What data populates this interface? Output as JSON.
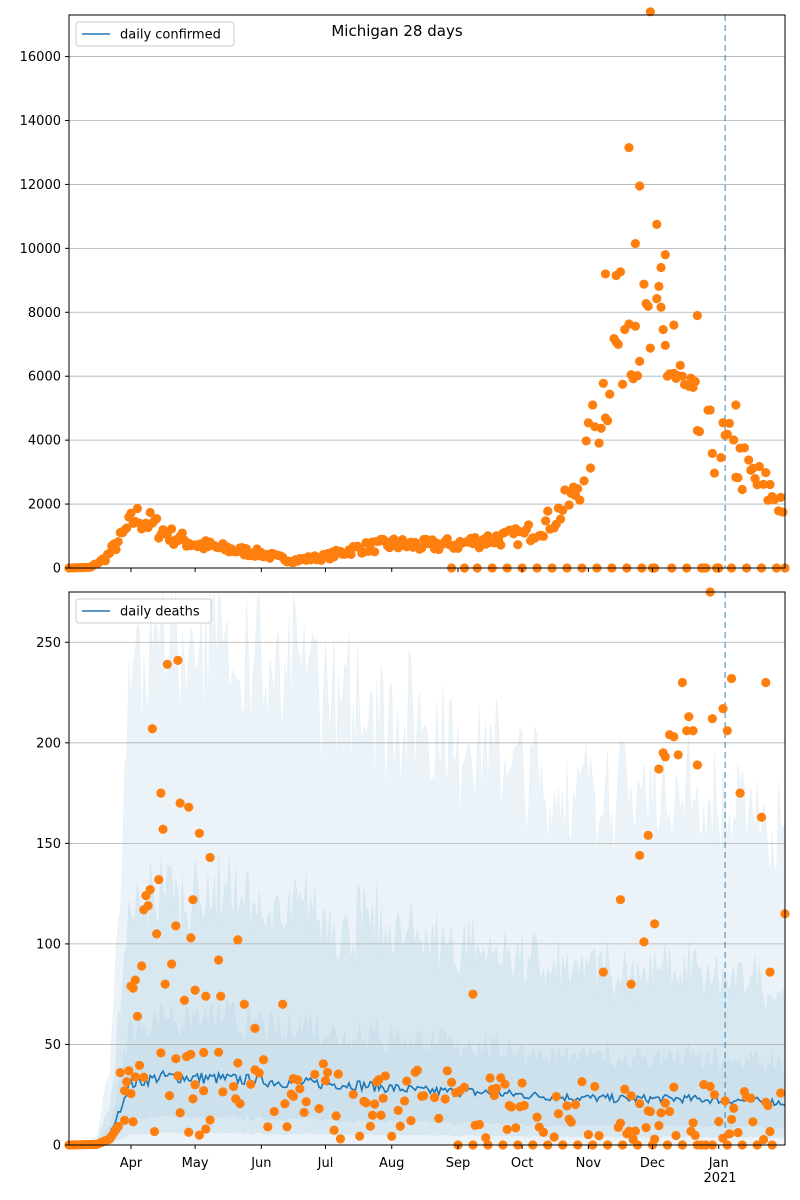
{
  "title": "Michigan 28 days",
  "x_ticks": [
    "Apr",
    "May",
    "Jun",
    "Jul",
    "Aug",
    "Sep",
    "Oct",
    "Nov",
    "Dec",
    "Jan"
  ],
  "x_year_label": "2021",
  "colors": {
    "line": "#1f77b4",
    "points": "#ff7f0e",
    "band": "#1f77b4",
    "grid": "#b0b0b0",
    "vline": "#1f77b4"
  },
  "chart_data": [
    {
      "type": "scatter",
      "title": "Michigan 28 days",
      "legend": {
        "label": "daily confirmed",
        "placement": "top-left"
      },
      "xlim": [
        "2020-03-03",
        "2021-02-01"
      ],
      "ylim": [
        0,
        17300
      ],
      "yticks": [
        0,
        2000,
        4000,
        6000,
        8000,
        10000,
        12000,
        14000,
        16000
      ],
      "grid": "y",
      "vline_date": "2021-01-04",
      "control_points": [
        [
          "2020-03-03",
          0
        ],
        [
          "2020-03-13",
          20
        ],
        [
          "2020-03-20",
          300
        ],
        [
          "2020-03-27",
          900
        ],
        [
          "2020-04-03",
          1600
        ],
        [
          "2020-04-10",
          1400
        ],
        [
          "2020-04-20",
          1000
        ],
        [
          "2020-05-01",
          750
        ],
        [
          "2020-05-15",
          600
        ],
        [
          "2020-06-01",
          450
        ],
        [
          "2020-06-15",
          230
        ],
        [
          "2020-07-01",
          350
        ],
        [
          "2020-07-15",
          600
        ],
        [
          "2020-08-01",
          750
        ],
        [
          "2020-08-15",
          700
        ],
        [
          "2020-09-01",
          750
        ],
        [
          "2020-09-15",
          900
        ],
        [
          "2020-10-01",
          1000
        ],
        [
          "2020-10-15",
          1500
        ],
        [
          "2020-10-25",
          2200
        ],
        [
          "2020-11-01",
          3600
        ],
        [
          "2020-11-10",
          6000
        ],
        [
          "2020-11-17",
          7500
        ],
        [
          "2020-11-20",
          8500
        ],
        [
          "2020-11-27",
          7200
        ],
        [
          "2020-12-05",
          7000
        ],
        [
          "2020-12-15",
          5500
        ],
        [
          "2020-12-25",
          4000
        ],
        [
          "2021-01-05",
          3700
        ],
        [
          "2021-01-15",
          2900
        ],
        [
          "2021-02-01",
          2000
        ]
      ],
      "outliers": [
        [
          "2020-11-20",
          13150
        ],
        [
          "2020-11-23",
          10150
        ],
        [
          "2020-11-25",
          11950
        ],
        [
          "2020-11-30",
          17400
        ],
        [
          "2020-12-03",
          10750
        ],
        [
          "2020-12-07",
          9800
        ],
        [
          "2020-12-05",
          9400
        ],
        [
          "2020-11-09",
          9200
        ],
        [
          "2020-11-14",
          9150
        ],
        [
          "2020-12-22",
          7900
        ],
        [
          "2020-12-11",
          7600
        ],
        [
          "2021-01-09",
          5100
        ]
      ],
      "zero_dates": [
        "2020-08-29",
        "2020-09-04",
        "2020-09-10",
        "2020-09-17",
        "2020-09-24",
        "2020-10-01",
        "2020-10-08",
        "2020-10-15",
        "2020-10-22",
        "2020-10-29",
        "2020-11-05",
        "2020-11-12",
        "2020-11-19",
        "2020-11-26",
        "2020-12-01",
        "2020-12-02",
        "2020-12-10",
        "2020-12-17",
        "2020-12-24",
        "2020-12-25",
        "2020-12-26",
        "2020-12-31",
        "2021-01-01",
        "2021-01-07",
        "2021-01-14",
        "2021-01-21",
        "2021-01-28",
        "2021-02-01"
      ]
    },
    {
      "type": "scatter",
      "legend": {
        "label": "daily deaths",
        "placement": "top-left"
      },
      "xlim": [
        "2020-03-03",
        "2021-02-01"
      ],
      "ylim": [
        0,
        275
      ],
      "yticks": [
        0,
        50,
        100,
        150,
        200,
        250
      ],
      "grid": "y",
      "vline_date": "2021-01-04",
      "line_level": [
        [
          "2020-03-03",
          0
        ],
        [
          "2020-03-16",
          0.5
        ],
        [
          "2020-03-22",
          5
        ],
        [
          "2020-03-27",
          18
        ],
        [
          "2020-03-31",
          30
        ],
        [
          "2020-04-15",
          34
        ],
        [
          "2020-05-15",
          33
        ],
        [
          "2020-06-15",
          31
        ],
        [
          "2020-07-15",
          30
        ],
        [
          "2020-08-15",
          27
        ],
        [
          "2020-09-15",
          26
        ],
        [
          "2020-10-15",
          24
        ],
        [
          "2020-11-15",
          23
        ],
        [
          "2020-12-15",
          23
        ],
        [
          "2021-01-15",
          22
        ],
        [
          "2021-02-01",
          21
        ]
      ],
      "bands": [
        {
          "lower": 0.42,
          "upper": 1.85
        },
        {
          "lower": 0.18,
          "upper": 3.7
        },
        {
          "lower": 0.0,
          "upper": 7.5
        }
      ],
      "points": [
        [
          "2020-03-27",
          36
        ],
        [
          "2020-03-29",
          27
        ],
        [
          "2020-04-01",
          79
        ],
        [
          "2020-04-02",
          78
        ],
        [
          "2020-04-03",
          82
        ],
        [
          "2020-04-04",
          64
        ],
        [
          "2020-04-06",
          89
        ],
        [
          "2020-04-07",
          117
        ],
        [
          "2020-04-08",
          124
        ],
        [
          "2020-04-09",
          119
        ],
        [
          "2020-04-10",
          127
        ],
        [
          "2020-04-11",
          207
        ],
        [
          "2020-04-13",
          105
        ],
        [
          "2020-04-14",
          132
        ],
        [
          "2020-04-15",
          175
        ],
        [
          "2020-04-16",
          157
        ],
        [
          "2020-04-17",
          80
        ],
        [
          "2020-04-18",
          239
        ],
        [
          "2020-04-20",
          90
        ],
        [
          "2020-04-22",
          109
        ],
        [
          "2020-04-23",
          241
        ],
        [
          "2020-04-24",
          170
        ],
        [
          "2020-04-26",
          72
        ],
        [
          "2020-04-28",
          168
        ],
        [
          "2020-04-29",
          103
        ],
        [
          "2020-04-30",
          122
        ],
        [
          "2020-05-01",
          77
        ],
        [
          "2020-05-03",
          155
        ],
        [
          "2020-05-05",
          46
        ],
        [
          "2020-05-06",
          74
        ],
        [
          "2020-05-08",
          143
        ],
        [
          "2020-05-12",
          92
        ],
        [
          "2020-05-13",
          74
        ],
        [
          "2020-05-21",
          102
        ],
        [
          "2020-05-24",
          70
        ],
        [
          "2020-05-29",
          58
        ],
        [
          "2020-06-11",
          70
        ],
        [
          "2020-06-16",
          33
        ],
        [
          "2020-07-01",
          32
        ],
        [
          "2020-09-08",
          75
        ],
        [
          "2020-11-08",
          86
        ],
        [
          "2020-11-16",
          122
        ],
        [
          "2020-11-21",
          80
        ],
        [
          "2020-11-25",
          144
        ],
        [
          "2020-11-27",
          101
        ],
        [
          "2020-11-29",
          154
        ],
        [
          "2020-12-02",
          110
        ],
        [
          "2020-12-04",
          187
        ],
        [
          "2020-12-06",
          195
        ],
        [
          "2020-12-07",
          193
        ],
        [
          "2020-12-09",
          204
        ],
        [
          "2020-12-11",
          203
        ],
        [
          "2020-12-13",
          194
        ],
        [
          "2020-12-15",
          230
        ],
        [
          "2020-12-17",
          206
        ],
        [
          "2020-12-18",
          213
        ],
        [
          "2020-12-20",
          206
        ],
        [
          "2020-12-22",
          189
        ],
        [
          "2020-12-28",
          277
        ],
        [
          "2020-12-29",
          212
        ],
        [
          "2021-01-03",
          217
        ],
        [
          "2021-01-05",
          206
        ],
        [
          "2021-01-07",
          232
        ],
        [
          "2021-01-11",
          175
        ],
        [
          "2021-01-23",
          230
        ],
        [
          "2021-01-21",
          163
        ],
        [
          "2021-02-01",
          115
        ],
        [
          "2021-01-25",
          86
        ]
      ],
      "zero_dates": [
        "2020-09-01",
        "2020-09-08",
        "2020-09-15",
        "2020-09-22",
        "2020-09-29",
        "2020-10-06",
        "2020-10-13",
        "2020-10-20",
        "2020-10-27",
        "2020-11-03",
        "2020-11-10",
        "2020-11-17",
        "2020-11-24",
        "2020-12-01",
        "2020-12-08",
        "2020-12-15",
        "2020-12-22",
        "2020-12-24",
        "2020-12-26",
        "2020-12-29",
        "2021-01-05",
        "2021-01-12",
        "2021-01-19",
        "2021-01-26"
      ]
    }
  ]
}
